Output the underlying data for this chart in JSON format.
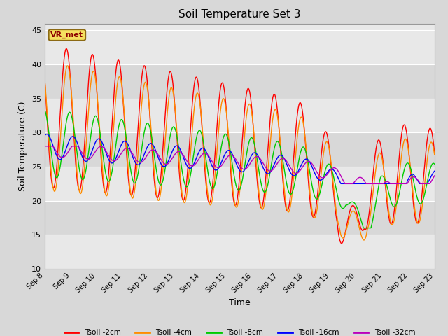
{
  "title": "Soil Temperature Set 3",
  "xlabel": "Time",
  "ylabel": "Soil Temperature (C)",
  "ylim": [
    10,
    46
  ],
  "xlim": [
    0,
    360
  ],
  "fig_bg": "#d8d8d8",
  "plot_bg": "#e8e8e8",
  "band_light": "#e8e8e8",
  "band_dark": "#d8d8d8",
  "annotation_text": "VR_met",
  "annotation_bg": "#f5e060",
  "annotation_border": "#8B6914",
  "annotation_text_color": "#8B0000",
  "x_tick_labels": [
    "Sep 8",
    "Sep 9",
    "Sep 10",
    "Sep 11",
    "Sep 12",
    "Sep 13",
    "Sep 14",
    "Sep 15",
    "Sep 16",
    "Sep 17",
    "Sep 18",
    "Sep 19",
    "Sep 20",
    "Sep 21",
    "Sep 22",
    "Sep 23"
  ],
  "x_tick_positions": [
    0,
    24,
    48,
    72,
    96,
    120,
    144,
    168,
    192,
    216,
    240,
    264,
    288,
    312,
    336,
    360
  ],
  "y_ticks": [
    10,
    15,
    20,
    25,
    30,
    35,
    40,
    45
  ],
  "legend_entries": [
    "Tsoil -2cm",
    "Tsoil -4cm",
    "Tsoil -8cm",
    "Tsoil -16cm",
    "Tsoil -32cm"
  ],
  "line_colors": [
    "#ff0000",
    "#ff8c00",
    "#00cc00",
    "#0000ff",
    "#bb00bb"
  ]
}
